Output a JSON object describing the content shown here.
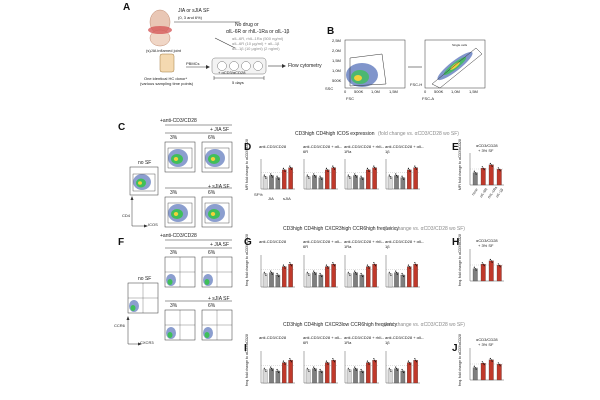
{
  "panels": {
    "A": {
      "letter": "A",
      "sf_label": "JIA or sJIA SF",
      "sf_conc": "(0, 3 and 6%)",
      "joint_label": "(s)JIA inflamed joint",
      "drugs_line1": "No drug or",
      "drugs_line2": "αIL-6R or rhIL-1Ra or αIL-1β",
      "faded_lines": [
        "αIL-6R, rhIL-1Ra (500 ng/ml)",
        "αIL-6R (10 μg/ml) + αIL-1β",
        "αIL-1β (10 μg/ml) (2 ng/ml)"
      ],
      "pbmc_label": "PBMCs",
      "donor_line1": "One identical HC donor*",
      "donor_line2": "(various sampling time points)",
      "stim_label": "+ αCD3/αCD28",
      "days_label": "5 days",
      "flow_label": "Flow cytometry"
    },
    "B": {
      "letter": "B",
      "y_ticks_left": [
        "2,5M",
        "2,0M",
        "1,5M",
        "1,0M",
        "500K"
      ],
      "x_ticks_left": [
        "0",
        "500K",
        "1,0M",
        "1,5M"
      ],
      "y_axis_left": "SSC",
      "x_axis_left": "FSC",
      "x_ticks_right": [
        "0",
        "500K",
        "1,0M",
        "1,5M"
      ],
      "y_axis_right": "FSC-H",
      "x_axis_right": "FSC-A",
      "gate_label": "Single cells"
    },
    "C": {
      "letter": "C",
      "title": "+anti-CD3/CD28",
      "jia": "+ JIA SF",
      "sjia": "+ sJIA SF",
      "pct3": "3%",
      "pct6": "6%",
      "nosf": "no SF",
      "y_axis": "CD4",
      "x_axis": "ICOS"
    },
    "D": {
      "letter": "D",
      "header_main": "CD3high CD4high ICOS expression",
      "header_note": "(fold change vs. αCD3/CD28 wo SF)",
      "y_axis": "MFI fold change to αCD3/αCD28",
      "subtitles": [
        "anti-CD3/CD28",
        "anti-CD3/CD28 + αIL-6R",
        "anti-CD3/CD28 + rhIL-1Ra",
        "anti-CD3/CD28 + αIL-1β"
      ],
      "x_row1": [
        "0",
        "3 6",
        "3 6"
      ],
      "x_row2": [
        "JIA",
        "sJIA"
      ],
      "sf_label": "SF%"
    },
    "E": {
      "letter": "E",
      "title_line1": "αCD3/CD28",
      "title_line2": "+ 3% SF",
      "y_axis": "MFI fold change to αCD3/αCD28",
      "x_labels": [
        "none",
        "αIL-6R",
        "rhIL-1Ra",
        "αIL-1β"
      ]
    },
    "F": {
      "letter": "F",
      "title": "+anti-CD3/CD28",
      "jia": "+ JIA SF",
      "sjia": "+ sJIA SF",
      "pct3": "3%",
      "pct6": "6%",
      "nosf": "no SF",
      "y_axis": "CCR6",
      "x_axis": "CXCR3"
    },
    "G": {
      "letter": "G",
      "header_main": "CD3high CD4high CXCR3high CCR6high frequency",
      "header_note": "(fold change vs. αCD3/CD28 wo SF)",
      "y_axis": "freq. fold change to αCD3/αCD28",
      "subtitles": [
        "anti-CD3/CD28",
        "anti-CD3/CD28 + αIL-6R",
        "anti-CD3/CD28 + rhIL-1Ra",
        "anti-CD3/CD28 + αIL-1β"
      ]
    },
    "H": {
      "letter": "H",
      "title_line1": "αCD3/CD28",
      "title_line2": "+ 3% SF",
      "y_axis": "freq. fold change to αCD3/αCD28"
    },
    "I": {
      "letter": "I",
      "header_main": "CD3high CD4high CXCR3low CCR6high frequency",
      "header_note": "(fold change vs. αCD3/CD28 wo SF)",
      "y_axis": "freq. fold change to αCD3/αCD28",
      "subtitles": [
        "anti-CD3/CD28",
        "anti-CD3/CD28 + αIL-6R",
        "anti-CD3/CD28 + rhIL-1Ra",
        "anti-CD3/CD28 + αIL-1β"
      ]
    },
    "J": {
      "letter": "J",
      "title_line1": "αCD3/CD28",
      "title_line2": "+ 3% SF",
      "y_axis": "freq. fold change to αCD3/αCD28"
    }
  },
  "colors": {
    "jia_bar": "#7f7f7f",
    "sjia_bar": "#c0392b",
    "control_bar": "#d9d9d9",
    "flow_blue": "#2b4fa8",
    "flow_green": "#3fbf5a",
    "flow_yellow": "#f2d13a"
  }
}
